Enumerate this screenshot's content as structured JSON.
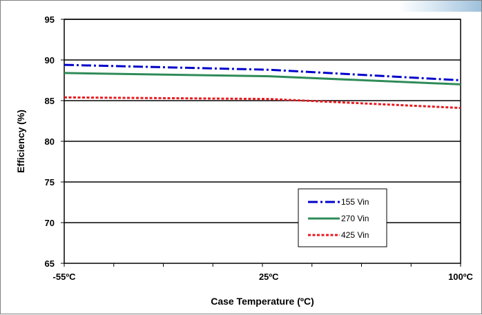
{
  "chart_data": {
    "type": "line",
    "title": "",
    "xlabel": "Case Temperature (ºC)",
    "ylabel": "Efficiency (%)",
    "xlim": [
      -55,
      100
    ],
    "ylim": [
      65,
      95
    ],
    "yticks": [
      65,
      70,
      75,
      80,
      85,
      90,
      95
    ],
    "xtick_labels": [
      {
        "value": -55,
        "label": "-55ºC"
      },
      {
        "value": 25,
        "label": "25ºC"
      },
      {
        "value": 100,
        "label": "100ºC"
      }
    ],
    "grid": "horizontal",
    "legend_position": "lower-right",
    "x": [
      -55,
      25,
      100
    ],
    "series": [
      {
        "name": "155 Vin",
        "values": [
          89.4,
          88.8,
          87.5
        ],
        "color": "#0000cc",
        "style": "dash-dot"
      },
      {
        "name": "270 Vin",
        "values": [
          88.4,
          88.0,
          87.0
        ],
        "color": "#2e8b57",
        "style": "solid"
      },
      {
        "name": "425 Vin",
        "values": [
          85.4,
          85.2,
          84.1
        ],
        "color": "#e8191e",
        "style": "dotted"
      }
    ]
  }
}
